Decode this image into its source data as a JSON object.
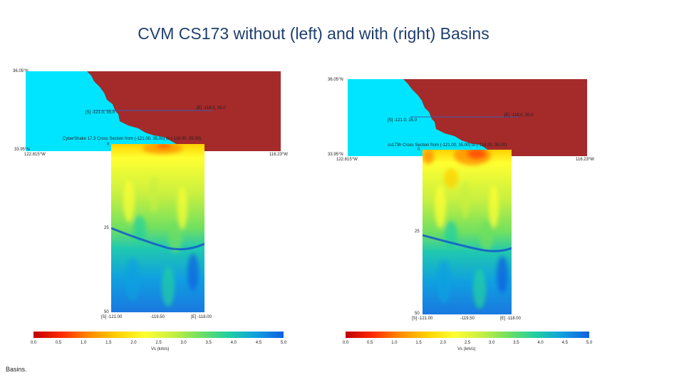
{
  "title": "CVM CS173 without (left) and with (right) Basins",
  "footer_text": "Basins.",
  "colors": {
    "ocean": "#00e5ff",
    "land": "#a52a2a",
    "section_line": "#3a5fb0"
  },
  "colorbar": {
    "ticks": [
      "0.0",
      "0.5",
      "1.0",
      "1.5",
      "2.0",
      "2.5",
      "3.0",
      "3.5",
      "4.0",
      "4.5",
      "5.0"
    ],
    "colormap": [
      "#c00000",
      "#ff2a00",
      "#ff8a00",
      "#ffd000",
      "#ffff30",
      "#c8f040",
      "#70e060",
      "#20d0a0",
      "#10a0e0",
      "#1060e0"
    ]
  },
  "left": {
    "lat_top": "36.05°N",
    "lat_bottom": "33.95°N",
    "lon_left": "122.815°W",
    "lon_right": "116.23°W",
    "start_label": "[S] -121.0, 35.0",
    "end_label": "[E] -118.0, 35.0",
    "caption": "CyberShake 17.3 Cross Section from (-121.00, 35.00) to (-118.00, 35.00)",
    "depth_top": "0",
    "depth_mid": "25",
    "depth_bottom": "50",
    "x_ticks": [
      "[S] -121.00",
      "-119.50",
      "[E] -118.00"
    ],
    "cbar_label": "Vs (km/s)"
  },
  "right": {
    "lat_top": "36.05°N",
    "lat_bottom": "33.95°N",
    "lon_left": "122.815°W",
    "lon_right": "116.23°W",
    "start_label": "[S] -121.0, 35.0",
    "end_label": "[E] -118.0, 35.0",
    "caption": "cs173h Cross Section from (-121.00, 35.00) to (-118.00, 35.00)",
    "depth_top": "0",
    "depth_mid": "25",
    "depth_bottom": "50",
    "x_ticks": [
      "[S] -121.00",
      "-119.50",
      "[E] -118.00"
    ],
    "cbar_label": "Vs (km/s)"
  }
}
